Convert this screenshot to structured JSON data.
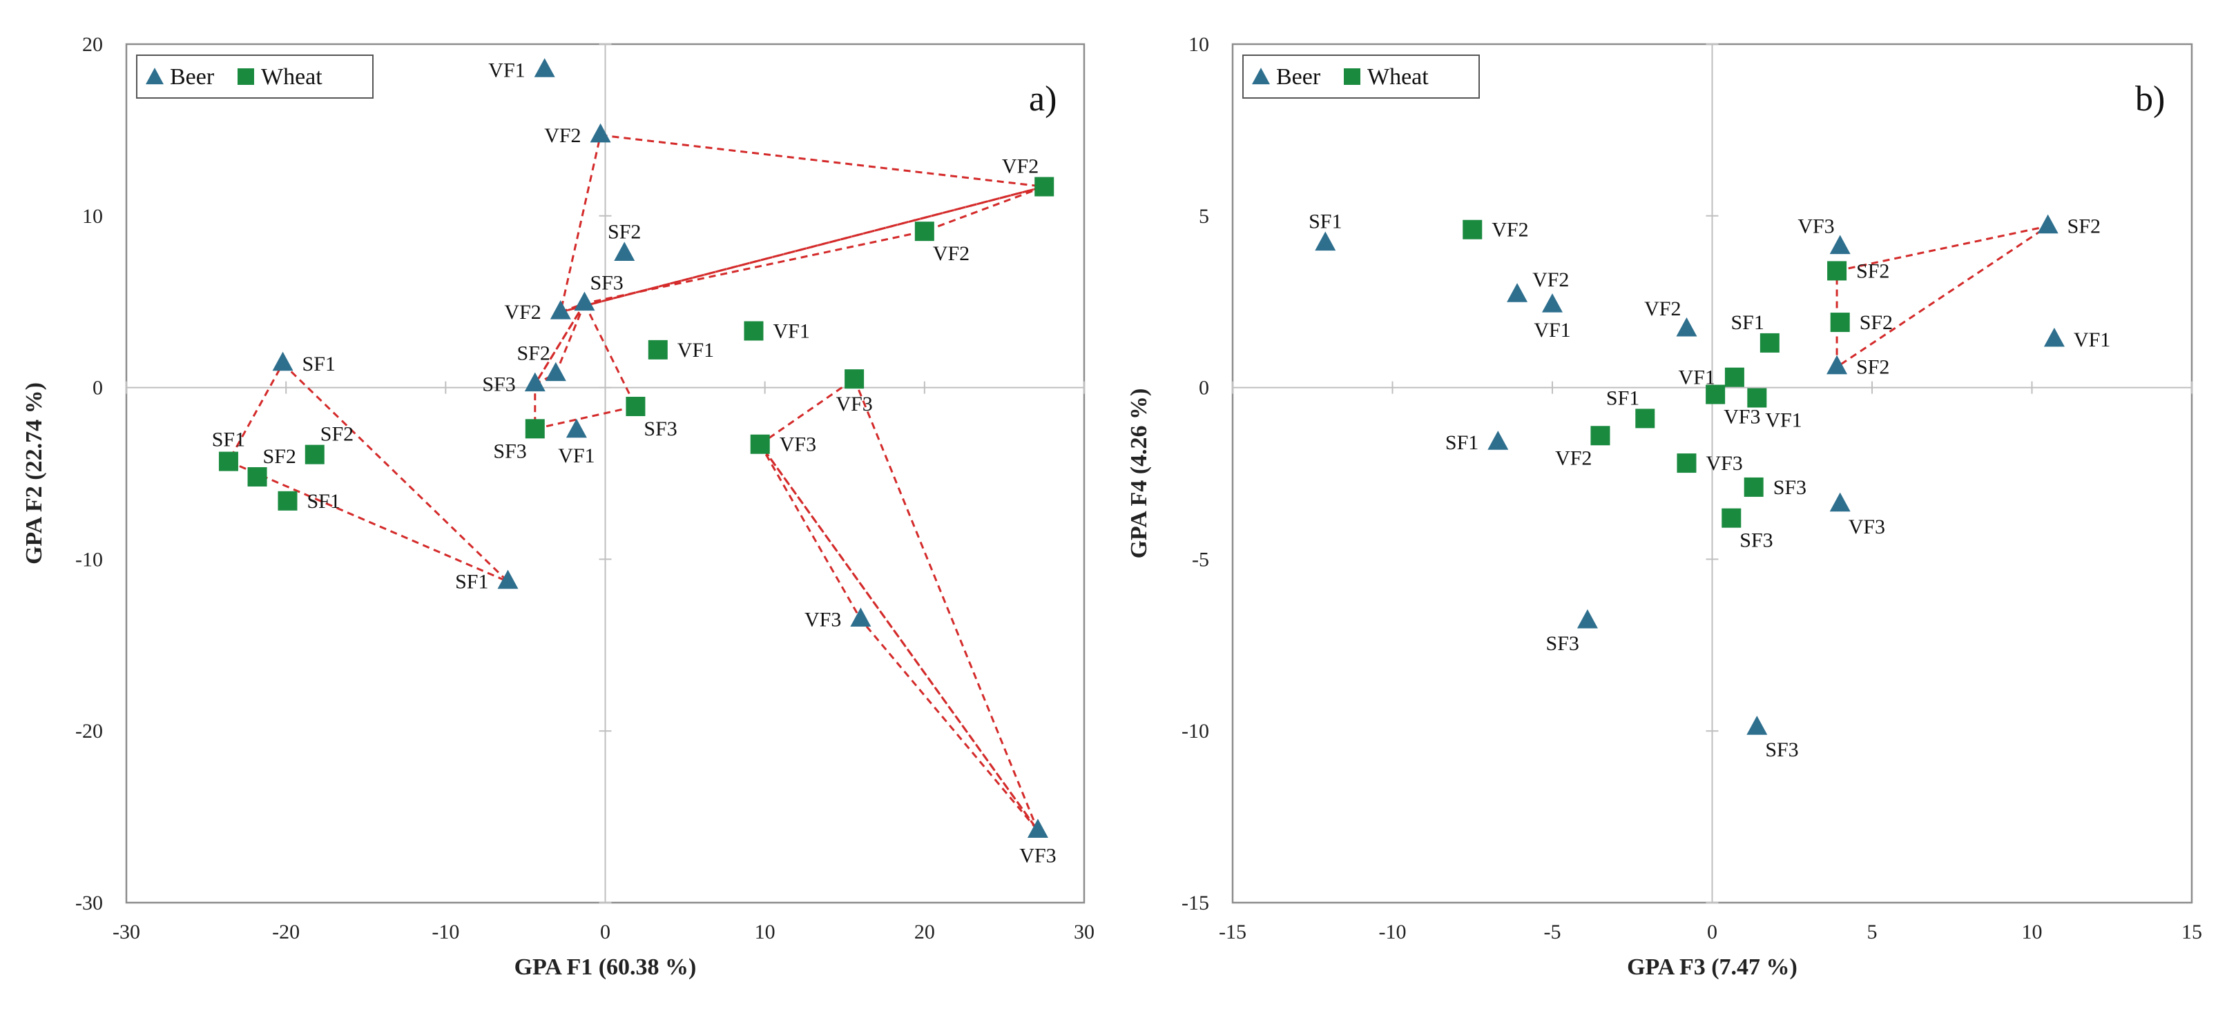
{
  "colors": {
    "beer": "#2e6f8e",
    "wheat": "#1a8a3f",
    "hull": "#d42a2a",
    "frame": "#8c8c8c",
    "zero_line": "#bfbfbf"
  },
  "chart_data": [
    {
      "type": "scatter",
      "panel_label": "a)",
      "xlabel": "GPA F1 (60.38 %)",
      "ylabel": "GPA F2 (22.74 %)",
      "xlim": [
        -30,
        30
      ],
      "ylim": [
        -30,
        20
      ],
      "xticks": [
        -30,
        -20,
        -10,
        0,
        10,
        20,
        30
      ],
      "yticks": [
        -30,
        -20,
        -10,
        0,
        10,
        20
      ],
      "legend": {
        "position": "top-left",
        "entries": [
          {
            "name": "Beer",
            "marker": "triangle"
          },
          {
            "name": "Wheat",
            "marker": "square"
          }
        ]
      },
      "series": [
        {
          "name": "Beer",
          "marker": "triangle",
          "points": [
            {
              "x": -3.8,
              "y": 18.5,
              "label": "VF1",
              "anchor": "left"
            },
            {
              "x": -0.3,
              "y": 14.7,
              "label": "VF2",
              "anchor": "left"
            },
            {
              "x": 1.2,
              "y": 7.8,
              "label": "SF2",
              "anchor": "above"
            },
            {
              "x": -1.3,
              "y": 4.9,
              "label": "SF3",
              "anchor": "above-right"
            },
            {
              "x": -2.8,
              "y": 4.4,
              "label": "VF2",
              "anchor": "left"
            },
            {
              "x": -3.1,
              "y": 0.8,
              "label": "SF2",
              "anchor": "above-left"
            },
            {
              "x": -4.4,
              "y": 0.2,
              "label": "SF3",
              "anchor": "left"
            },
            {
              "x": -1.8,
              "y": -2.5,
              "label": "VF1",
              "anchor": "below"
            },
            {
              "x": -20.2,
              "y": 1.4,
              "label": "SF1",
              "anchor": "right"
            },
            {
              "x": -6.1,
              "y": -11.3,
              "label": "SF1",
              "anchor": "left"
            },
            {
              "x": 16.0,
              "y": -13.5,
              "label": "VF3",
              "anchor": "left"
            },
            {
              "x": 27.1,
              "y": -25.8,
              "label": "VF3",
              "anchor": "below"
            }
          ]
        },
        {
          "name": "Wheat",
          "marker": "square",
          "points": [
            {
              "x": 27.5,
              "y": 11.7,
              "label": "VF2",
              "anchor": "above-left"
            },
            {
              "x": 20.0,
              "y": 9.1,
              "label": "VF2",
              "anchor": "below-right"
            },
            {
              "x": 3.3,
              "y": 2.2,
              "label": "VF1",
              "anchor": "right"
            },
            {
              "x": 9.3,
              "y": 3.3,
              "label": "VF1",
              "anchor": "right"
            },
            {
              "x": 15.6,
              "y": 0.5,
              "label": "VF3",
              "anchor": "below"
            },
            {
              "x": 9.7,
              "y": -3.3,
              "label": "VF3",
              "anchor": "right"
            },
            {
              "x": 1.9,
              "y": -1.1,
              "label": "SF3",
              "anchor": "below-right"
            },
            {
              "x": -4.4,
              "y": -2.4,
              "label": "SF3",
              "anchor": "below-left"
            },
            {
              "x": -23.6,
              "y": -4.3,
              "label": "SF1",
              "anchor": "above"
            },
            {
              "x": -21.8,
              "y": -5.2,
              "label": "SF2",
              "anchor": "above-right"
            },
            {
              "x": -18.2,
              "y": -3.9,
              "label": "SF2",
              "anchor": "above-right"
            },
            {
              "x": -19.9,
              "y": -6.6,
              "label": "SF1",
              "anchor": "right"
            }
          ]
        }
      ],
      "hulls": [
        [
          [
            -0.3,
            14.7
          ],
          [
            27.5,
            11.7
          ],
          [
            -2.8,
            4.4
          ]
        ],
        [
          [
            -2.8,
            4.4
          ],
          [
            -1.3,
            4.9
          ],
          [
            20.0,
            9.1
          ],
          [
            27.5,
            11.7
          ]
        ],
        [
          [
            -1.3,
            4.9
          ],
          [
            -4.4,
            0.2
          ],
          [
            -3.1,
            0.8
          ]
        ],
        [
          [
            -1.3,
            4.9
          ],
          [
            1.9,
            -1.1
          ],
          [
            -4.4,
            -2.4
          ],
          [
            -4.4,
            0.2
          ]
        ],
        [
          [
            -20.2,
            1.4
          ],
          [
            -6.1,
            -11.3
          ],
          [
            -23.6,
            -4.3
          ]
        ],
        [
          [
            15.6,
            0.5
          ],
          [
            27.1,
            -25.8
          ],
          [
            9.7,
            -3.3
          ]
        ],
        [
          [
            9.7,
            -3.3
          ],
          [
            16.0,
            -13.5
          ],
          [
            27.1,
            -25.8
          ]
        ]
      ]
    },
    {
      "type": "scatter",
      "panel_label": "b)",
      "xlabel": "GPA F3 (7.47 %)",
      "ylabel": "GPA F4 (4.26 %)",
      "xlim": [
        -15,
        15
      ],
      "ylim": [
        -15,
        10
      ],
      "xticks": [
        -15,
        -10,
        -5,
        0,
        5,
        10,
        15
      ],
      "yticks": [
        -15,
        -10,
        -5,
        0,
        5,
        10
      ],
      "legend": {
        "position": "top-left",
        "entries": [
          {
            "name": "Beer",
            "marker": "triangle"
          },
          {
            "name": "Wheat",
            "marker": "square"
          }
        ]
      },
      "series": [
        {
          "name": "Beer",
          "marker": "triangle",
          "points": [
            {
              "x": -12.1,
              "y": 4.2,
              "label": "SF1",
              "anchor": "above"
            },
            {
              "x": -6.1,
              "y": 2.7,
              "label": "VF2",
              "anchor": "none"
            },
            {
              "x": -5.0,
              "y": 2.4,
              "label": "VF1",
              "anchor": "below"
            },
            {
              "x": -0.8,
              "y": 1.7,
              "label": "VF2",
              "anchor": "above-left"
            },
            {
              "x": 4.0,
              "y": 4.1,
              "label": "VF3",
              "anchor": "above-left"
            },
            {
              "x": 10.5,
              "y": 4.7,
              "label": "SF2",
              "anchor": "right"
            },
            {
              "x": 10.7,
              "y": 1.4,
              "label": "VF1",
              "anchor": "right"
            },
            {
              "x": 3.9,
              "y": 0.6,
              "label": "SF2",
              "anchor": "right"
            },
            {
              "x": -6.7,
              "y": -1.6,
              "label": "SF1",
              "anchor": "left"
            },
            {
              "x": 4.0,
              "y": -3.4,
              "label": "VF3",
              "anchor": "below-right"
            },
            {
              "x": -3.9,
              "y": -6.8,
              "label": "SF3",
              "anchor": "below-left"
            },
            {
              "x": 1.4,
              "y": -9.9,
              "label": "SF3",
              "anchor": "below-right"
            }
          ]
        },
        {
          "name": "Wheat",
          "marker": "square",
          "points": [
            {
              "x": -7.5,
              "y": 4.6,
              "label": "VF2",
              "anchor": "right"
            },
            {
              "x": 3.9,
              "y": 3.4,
              "label": "SF2",
              "anchor": "right"
            },
            {
              "x": 4.0,
              "y": 1.9,
              "label": "SF2",
              "anchor": "right"
            },
            {
              "x": 1.8,
              "y": 1.3,
              "label": "SF1",
              "anchor": "above-left"
            },
            {
              "x": 0.7,
              "y": 0.3,
              "label": "VF1",
              "anchor": "left"
            },
            {
              "x": 0.1,
              "y": -0.2,
              "label": "VF3",
              "anchor": "below-right"
            },
            {
              "x": 1.4,
              "y": -0.3,
              "label": "VF1",
              "anchor": "below-right"
            },
            {
              "x": -2.1,
              "y": -0.9,
              "label": "SF1",
              "anchor": "above-left"
            },
            {
              "x": -3.5,
              "y": -1.4,
              "label": "VF2",
              "anchor": "below-left"
            },
            {
              "x": -0.8,
              "y": -2.2,
              "label": "VF3",
              "anchor": "right"
            },
            {
              "x": 1.3,
              "y": -2.9,
              "label": "SF3",
              "anchor": "right"
            },
            {
              "x": 0.6,
              "y": -3.8,
              "label": "SF3",
              "anchor": "below-right"
            }
          ]
        }
      ],
      "hulls": [
        [
          [
            3.9,
            3.4
          ],
          [
            10.5,
            4.7
          ],
          [
            3.9,
            0.6
          ]
        ]
      ]
    }
  ]
}
